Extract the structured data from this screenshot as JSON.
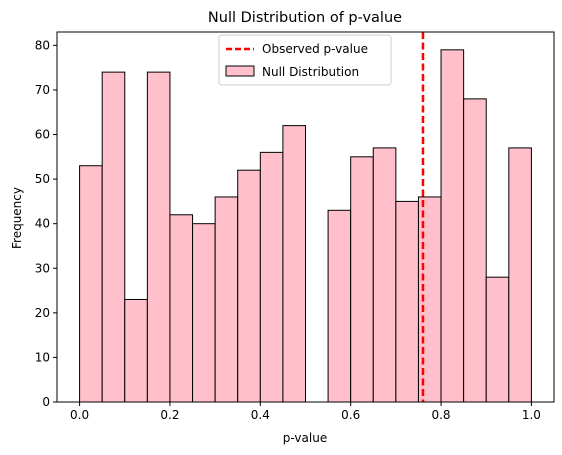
{
  "chart_data": {
    "type": "bar",
    "title": "Null Distribution of p-value",
    "xlabel": "p-value",
    "ylabel": "Frequency",
    "xlim": [
      -0.05,
      1.05
    ],
    "ylim": [
      0,
      83
    ],
    "xticks": [
      0.0,
      0.2,
      0.4,
      0.6,
      0.8,
      1.0
    ],
    "xtick_labels": [
      "0.0",
      "0.2",
      "0.4",
      "0.6",
      "0.8",
      "1.0"
    ],
    "yticks": [
      0,
      10,
      20,
      30,
      40,
      50,
      60,
      70,
      80
    ],
    "ytick_labels": [
      "0",
      "10",
      "20",
      "30",
      "40",
      "50",
      "60",
      "70",
      "80"
    ],
    "bin_edges": [
      0.0,
      0.05,
      0.1,
      0.15,
      0.2,
      0.25,
      0.3,
      0.35,
      0.4,
      0.45,
      0.5,
      0.55,
      0.6,
      0.65,
      0.7,
      0.75,
      0.8,
      0.85,
      0.9,
      0.95,
      1.0
    ],
    "values": [
      53,
      74,
      23,
      74,
      42,
      40,
      46,
      52,
      56,
      62,
      0,
      43,
      55,
      57,
      45,
      46,
      79,
      68,
      28,
      57
    ],
    "bar_color": "#ffc0cb",
    "bar_edge_color": "#000000",
    "observed_value": 0.76,
    "observed_color": "#ff0000",
    "grid": false,
    "legend_position": "upper center",
    "legend": [
      {
        "label": "Observed p-value",
        "kind": "dashed-line"
      },
      {
        "label": "Null Distribution",
        "kind": "patch"
      }
    ]
  }
}
